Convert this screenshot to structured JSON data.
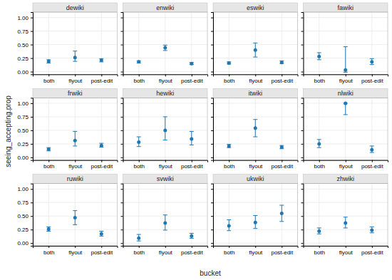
{
  "chart_data": {
    "type": "scatter",
    "xlabel": "bucket",
    "ylabel": "seeing_accepting.prop",
    "categories": [
      "both",
      "flyout",
      "post-edit"
    ],
    "ylim": [
      -0.05,
      1.1
    ],
    "yticks": [
      {
        "value": 0.0,
        "label": "0.00"
      },
      0.25,
      {
        "value": 0.5,
        "label": "0.50"
      },
      0.75,
      {
        "value": 1.0,
        "label": "1.00"
      }
    ],
    "grid": true,
    "series": [
      {
        "name": "dewiki",
        "values": [
          0.19,
          0.26,
          0.21
        ],
        "low": [
          0.16,
          0.19,
          0.18
        ],
        "high": [
          0.22,
          0.38,
          0.24
        ]
      },
      {
        "name": "enwiki",
        "values": [
          0.18,
          0.44,
          0.15
        ],
        "low": [
          0.16,
          0.39,
          0.13
        ],
        "high": [
          0.2,
          0.49,
          0.17
        ]
      },
      {
        "name": "eswiki",
        "values": [
          0.16,
          0.4,
          0.17
        ],
        "low": [
          0.14,
          0.27,
          0.15
        ],
        "high": [
          0.18,
          0.53,
          0.2
        ]
      },
      {
        "name": "fawiki",
        "values": [
          0.28,
          0.03,
          0.18
        ],
        "low": [
          0.22,
          -0.01,
          0.13
        ],
        "high": [
          0.35,
          0.46,
          0.24
        ]
      },
      {
        "name": "frwiki",
        "values": [
          0.15,
          0.31,
          0.22
        ],
        "low": [
          0.12,
          0.21,
          0.19
        ],
        "high": [
          0.18,
          0.48,
          0.26
        ]
      },
      {
        "name": "hewiki",
        "values": [
          0.28,
          0.5,
          0.34
        ],
        "low": [
          0.2,
          0.32,
          0.23
        ],
        "high": [
          0.38,
          0.75,
          0.48
        ]
      },
      {
        "name": "itwiki",
        "values": [
          0.21,
          0.54,
          0.19
        ],
        "low": [
          0.18,
          0.38,
          0.16
        ],
        "high": [
          0.24,
          0.7,
          0.22
        ]
      },
      {
        "name": "nlwiki",
        "values": [
          0.25,
          1.0,
          0.14
        ],
        "low": [
          0.18,
          0.79,
          0.09
        ],
        "high": [
          0.33,
          1.0,
          0.21
        ]
      },
      {
        "name": "ruwiki",
        "values": [
          0.26,
          0.47,
          0.17
        ],
        "low": [
          0.22,
          0.34,
          0.13
        ],
        "high": [
          0.3,
          0.6,
          0.22
        ]
      },
      {
        "name": "svwiki",
        "values": [
          0.09,
          0.37,
          0.13
        ],
        "low": [
          0.04,
          0.24,
          0.09
        ],
        "high": [
          0.16,
          0.52,
          0.18
        ]
      },
      {
        "name": "ukwiki",
        "values": [
          0.32,
          0.38,
          0.55
        ],
        "low": [
          0.23,
          0.27,
          0.4
        ],
        "high": [
          0.43,
          0.51,
          0.7
        ]
      },
      {
        "name": "zhwiki",
        "values": [
          0.22,
          0.37,
          0.24
        ],
        "low": [
          0.17,
          0.28,
          0.19
        ],
        "high": [
          0.28,
          0.48,
          0.3
        ]
      }
    ]
  }
}
